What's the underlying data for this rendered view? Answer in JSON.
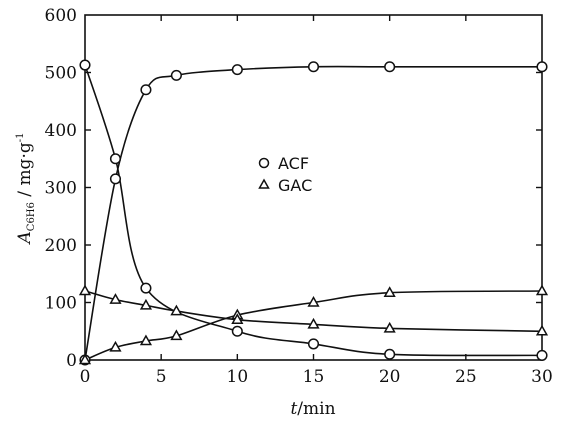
{
  "chart_data": {
    "type": "line",
    "xlabel": "t/min",
    "ylabel": "A_C6H6 / mg·g⁻¹",
    "xlim": [
      0,
      30
    ],
    "ylim": [
      0,
      600
    ],
    "x_ticks": [
      "0",
      "5",
      "10",
      "15",
      "20",
      "25",
      "30"
    ],
    "y_ticks": [
      "0",
      "100",
      "200",
      "300",
      "400",
      "500",
      "600"
    ],
    "grid": false,
    "legend_position": "center",
    "series": [
      {
        "name": "ACF",
        "marker": "circle",
        "adsorption": {
          "x": [
            0,
            2,
            4,
            6,
            10,
            15,
            20,
            30
          ],
          "y": [
            0,
            315,
            470,
            495,
            505,
            510,
            510,
            510
          ]
        },
        "desorption": {
          "x": [
            0,
            2,
            4,
            10,
            15,
            20,
            30
          ],
          "y": [
            513,
            350,
            125,
            50,
            28,
            10,
            8
          ]
        }
      },
      {
        "name": "GAC",
        "marker": "triangle",
        "adsorption": {
          "x": [
            0,
            2,
            4,
            6,
            10,
            15,
            20,
            30
          ],
          "y": [
            0,
            22,
            33,
            42,
            78,
            100,
            117,
            120
          ]
        },
        "desorption": {
          "x": [
            0,
            2,
            4,
            6,
            10,
            15,
            20,
            30
          ],
          "y": [
            120,
            105,
            95,
            85,
            70,
            62,
            55,
            50
          ]
        }
      }
    ]
  }
}
